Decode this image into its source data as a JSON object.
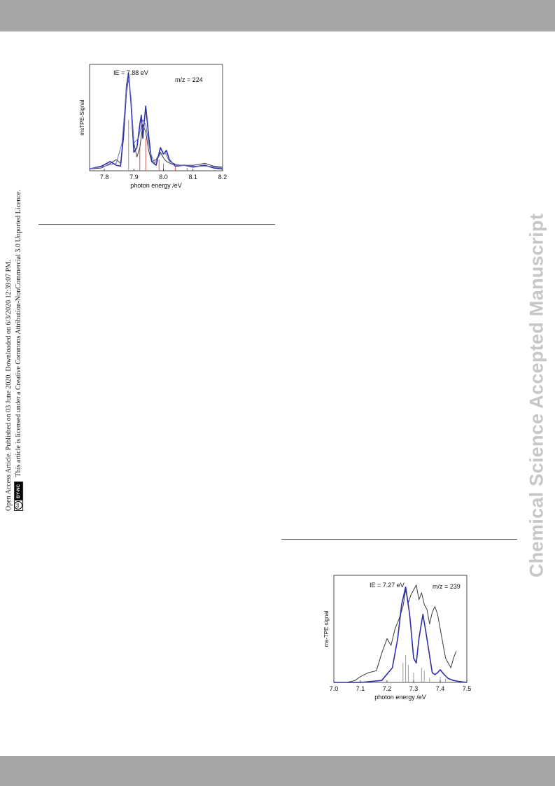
{
  "watermark": {
    "text": "Chemical Science Accepted Manuscript"
  },
  "license": {
    "line1": "Open Access Article. Published on 03 June 2020. Downloaded on 6/3/2020 12:39:07 PM.",
    "line2": "This article is licensed under a Creative Commons Attribution-NonCommercial 3.0 Unported Licence.",
    "badge_cc": "cc",
    "badge_text": "BY-NC"
  },
  "colors": {
    "band": "#a6a6a6",
    "experiment": "#3a3a3a",
    "simulation": "#2e2ea6",
    "simulation_light": "#6a6acc",
    "stick_red": "#d9534f",
    "stick_grey": "#9a9a9a"
  },
  "figures": [
    {
      "chart_data": {
        "type": "line",
        "title": "",
        "annotations": [
          "IE = 7.88 eV",
          "m/z = 224"
        ],
        "xlabel": "photon energy /eV",
        "ylabel": "msTPE-Signal",
        "xlim": [
          7.75,
          8.2
        ],
        "ylim": [
          0,
          1.15
        ],
        "xticks": [
          "7.8",
          "7.9",
          "8.0",
          "8.1",
          "8.2"
        ],
        "xtick_values": [
          7.8,
          7.9,
          8.0,
          8.1,
          8.2
        ],
        "series": [
          {
            "role": "experiment",
            "x": [
              7.75,
              7.79,
              7.82,
              7.84,
              7.855,
              7.865,
              7.875,
              7.882,
              7.89,
              7.9,
              7.91,
              7.92,
              7.93,
              7.94,
              7.95,
              7.96,
              7.975,
              7.99,
              8.0,
              8.01,
              8.03,
              8.06,
              8.1,
              8.14,
              8.17,
              8.2
            ],
            "y": [
              0.02,
              0.03,
              0.08,
              0.12,
              0.08,
              0.35,
              0.85,
              1.0,
              0.78,
              0.3,
              0.15,
              0.25,
              0.5,
              0.42,
              0.22,
              0.1,
              0.12,
              0.2,
              0.14,
              0.1,
              0.07,
              0.06,
              0.06,
              0.08,
              0.05,
              0.04
            ]
          },
          {
            "role": "simulation",
            "x": [
              7.75,
              7.79,
              7.82,
              7.84,
              7.855,
              7.865,
              7.875,
              7.882,
              7.89,
              7.9,
              7.91,
              7.92,
              7.925,
              7.93,
              7.94,
              7.95,
              7.96,
              7.975,
              7.99,
              8.0,
              8.01,
              8.02,
              8.04,
              8.07,
              8.1,
              8.14,
              8.17,
              8.2
            ],
            "y": [
              0.02,
              0.05,
              0.1,
              0.06,
              0.05,
              0.4,
              0.92,
              1.05,
              0.75,
              0.2,
              0.25,
              0.5,
              0.6,
              0.35,
              0.7,
              0.38,
              0.1,
              0.06,
              0.25,
              0.18,
              0.22,
              0.12,
              0.05,
              0.06,
              0.04,
              0.06,
              0.03,
              0.02
            ]
          },
          {
            "role": "simulation-broadened",
            "x": [
              7.75,
              7.8,
              7.84,
              7.86,
              7.875,
              7.882,
              7.89,
              7.9,
              7.915,
              7.93,
              7.94,
              7.955,
              7.97,
              7.99,
              8.005,
              8.02,
              8.05,
              8.1,
              8.15,
              8.2
            ],
            "y": [
              0.02,
              0.05,
              0.08,
              0.3,
              0.9,
              1.0,
              0.8,
              0.3,
              0.35,
              0.55,
              0.5,
              0.2,
              0.08,
              0.18,
              0.2,
              0.1,
              0.06,
              0.05,
              0.05,
              0.03
            ]
          }
        ],
        "sticks": [
          {
            "x": 7.882,
            "y": 0.55,
            "color": "grey"
          },
          {
            "x": 7.92,
            "y": 0.25,
            "color": "red"
          },
          {
            "x": 7.94,
            "y": 0.35,
            "color": "red"
          },
          {
            "x": 7.985,
            "y": 0.12,
            "color": "red"
          },
          {
            "x": 8.0,
            "y": 0.08,
            "color": "red"
          },
          {
            "x": 8.04,
            "y": 0.04,
            "color": "red"
          },
          {
            "x": 8.08,
            "y": 0.03,
            "color": "red"
          }
        ]
      }
    },
    {
      "chart_data": {
        "type": "line",
        "title": "",
        "annotations": [
          "IE = 7.27 eV",
          "m/z = 239"
        ],
        "xlabel": "photon energy /eV",
        "ylabel": "ms-TPE signal",
        "xlim": [
          7.0,
          7.5
        ],
        "ylim": [
          0,
          1.1
        ],
        "xticks": [
          "7.0",
          "7.1",
          "7.2",
          "7.3",
          "7.4",
          "7.5"
        ],
        "xtick_values": [
          7.0,
          7.1,
          7.2,
          7.3,
          7.4,
          7.5
        ],
        "series": [
          {
            "role": "experiment",
            "x": [
              7.0,
              7.05,
              7.08,
              7.1,
              7.13,
              7.16,
              7.18,
              7.2,
              7.215,
              7.23,
              7.245,
              7.26,
              7.27,
              7.28,
              7.29,
              7.3,
              7.31,
              7.32,
              7.33,
              7.34,
              7.35,
              7.36,
              7.37,
              7.38,
              7.39,
              7.4,
              7.41,
              7.42,
              7.43,
              7.44,
              7.45,
              7.46
            ],
            "y": [
              0.0,
              0.0,
              0.02,
              0.06,
              0.1,
              0.12,
              0.3,
              0.45,
              0.38,
              0.55,
              0.65,
              0.78,
              0.95,
              0.82,
              0.9,
              0.95,
              1.0,
              0.85,
              0.92,
              0.8,
              0.75,
              0.6,
              0.72,
              0.78,
              0.7,
              0.55,
              0.4,
              0.25,
              0.2,
              0.15,
              0.25,
              0.32
            ]
          },
          {
            "role": "simulation",
            "x": [
              7.0,
              7.1,
              7.18,
              7.22,
              7.24,
              7.255,
              7.27,
              7.285,
              7.3,
              7.31,
              7.32,
              7.335,
              7.35,
              7.37,
              7.38,
              7.39,
              7.4,
              7.415,
              7.43,
              7.45,
              7.47,
              7.5
            ],
            "y": [
              0.0,
              0.0,
              0.02,
              0.15,
              0.45,
              0.8,
              0.98,
              0.7,
              0.25,
              0.2,
              0.45,
              0.7,
              0.45,
              0.1,
              0.08,
              0.1,
              0.13,
              0.08,
              0.04,
              0.02,
              0.01,
              0.0
            ]
          }
        ],
        "sticks": [
          {
            "x": 7.26,
            "y": 0.2,
            "color": "grey"
          },
          {
            "x": 7.27,
            "y": 0.28,
            "color": "grey"
          },
          {
            "x": 7.28,
            "y": 0.18,
            "color": "grey"
          },
          {
            "x": 7.3,
            "y": 0.1,
            "color": "grey"
          },
          {
            "x": 7.33,
            "y": 0.15,
            "color": "grey"
          },
          {
            "x": 7.34,
            "y": 0.12,
            "color": "grey"
          },
          {
            "x": 7.36,
            "y": 0.05,
            "color": "grey"
          },
          {
            "x": 7.4,
            "y": 0.06,
            "color": "grey"
          },
          {
            "x": 7.42,
            "y": 0.04,
            "color": "grey"
          }
        ]
      }
    }
  ]
}
